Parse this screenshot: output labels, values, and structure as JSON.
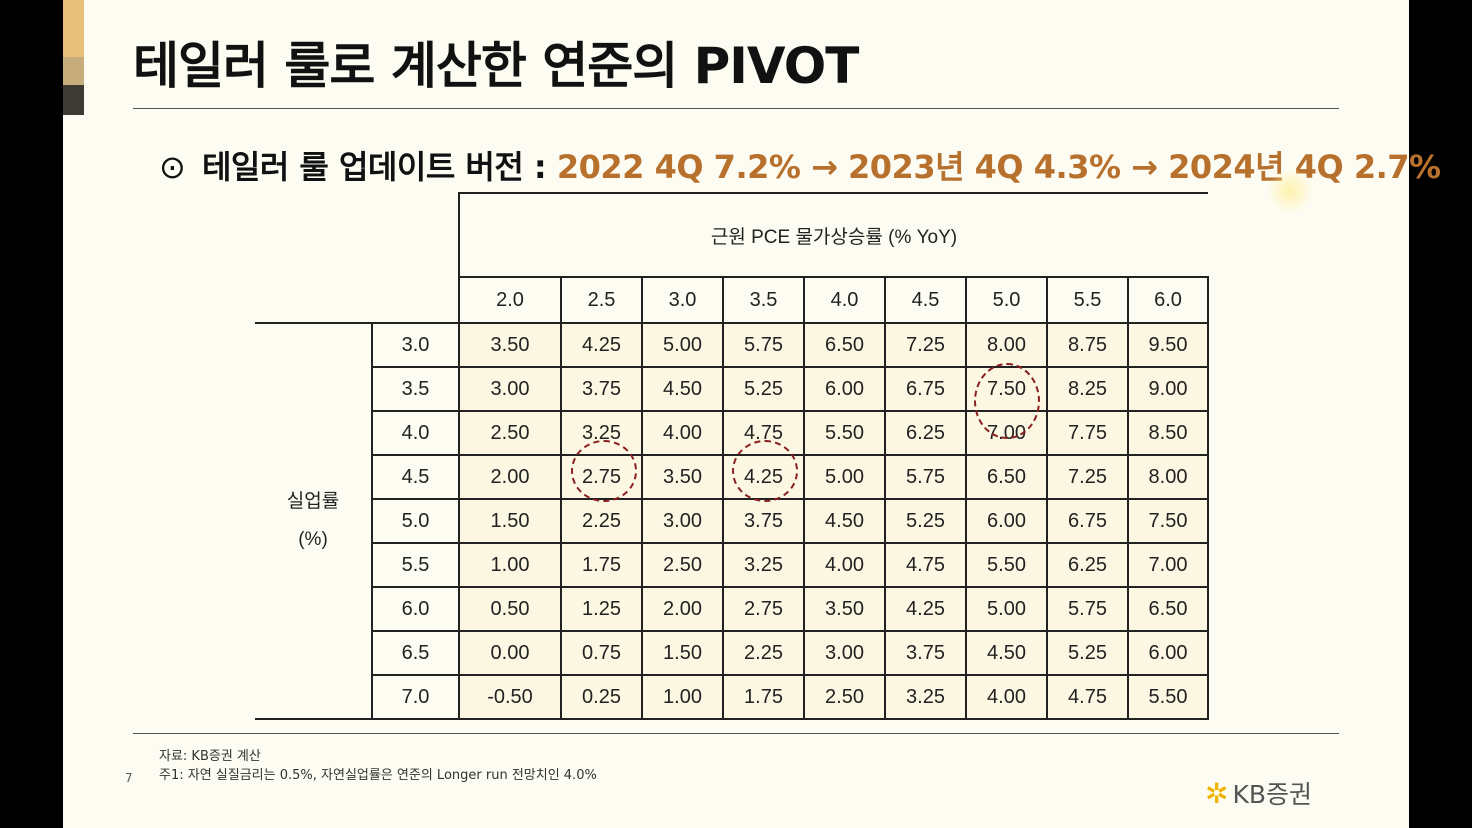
{
  "title": "테일러 룰로 계산한 연준의 PIVOT",
  "subtitle": {
    "bullet": "⊙",
    "text": "테일러 룰 업데이트 버전 : ",
    "highlight": "2022 4Q 7.2% → 2023년 4Q 4.3% → 2024년 4Q 2.7%"
  },
  "table": {
    "column_header": "근원 PCE 물가상승률 (% YoY)",
    "row_header_line1": "실업률",
    "row_header_line2": "(%)",
    "columns": [
      "2.0",
      "2.5",
      "3.0",
      "3.5",
      "4.0",
      "4.5",
      "5.0",
      "5.5",
      "6.0"
    ],
    "rows": [
      {
        "label": "3.0",
        "values": [
          "3.50",
          "4.25",
          "5.00",
          "5.75",
          "6.50",
          "7.25",
          "8.00",
          "8.75",
          "9.50"
        ]
      },
      {
        "label": "3.5",
        "values": [
          "3.00",
          "3.75",
          "4.50",
          "5.25",
          "6.00",
          "6.75",
          "7.50",
          "8.25",
          "9.00"
        ]
      },
      {
        "label": "4.0",
        "values": [
          "2.50",
          "3.25",
          "4.00",
          "4.75",
          "5.50",
          "6.25",
          "7.00",
          "7.75",
          "8.50"
        ]
      },
      {
        "label": "4.5",
        "values": [
          "2.00",
          "2.75",
          "3.50",
          "4.25",
          "5.00",
          "5.75",
          "6.50",
          "7.25",
          "8.00"
        ]
      },
      {
        "label": "5.0",
        "values": [
          "1.50",
          "2.25",
          "3.00",
          "3.75",
          "4.50",
          "5.25",
          "6.00",
          "6.75",
          "7.50"
        ]
      },
      {
        "label": "5.5",
        "values": [
          "1.00",
          "1.75",
          "2.50",
          "3.25",
          "4.00",
          "4.75",
          "5.50",
          "6.25",
          "7.00"
        ]
      },
      {
        "label": "6.0",
        "values": [
          "0.50",
          "1.25",
          "2.00",
          "2.75",
          "3.50",
          "4.25",
          "5.00",
          "5.75",
          "6.50"
        ]
      },
      {
        "label": "6.5",
        "values": [
          "0.00",
          "0.75",
          "1.50",
          "2.25",
          "3.00",
          "3.75",
          "4.50",
          "5.25",
          "6.00"
        ]
      },
      {
        "label": "7.0",
        "values": [
          "-0.50",
          "0.25",
          "1.00",
          "1.75",
          "2.50",
          "3.25",
          "4.00",
          "4.75",
          "5.50"
        ]
      }
    ]
  },
  "notes": {
    "source": "자료: KB증권 계산",
    "note1": "주1: 자연 실질금리는 0.5%, 자연실업률은 연준의 Longer run 전망치인 4.0%"
  },
  "page_number": "7",
  "logo": {
    "icon": "kb-star-icon",
    "text": "KB증권"
  }
}
